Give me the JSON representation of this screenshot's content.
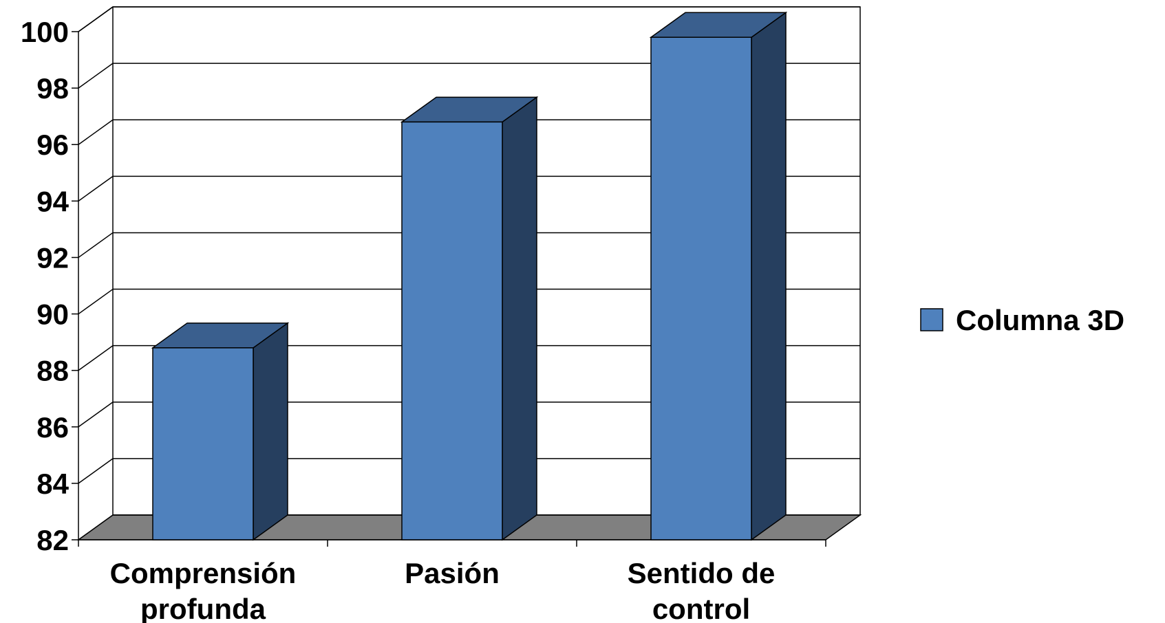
{
  "chart_data": {
    "type": "bar",
    "categories": [
      "Comprensión profunda",
      "Pasión",
      "Sentido de control"
    ],
    "category_lines": [
      [
        "Comprensión",
        "profunda"
      ],
      [
        "Pasión"
      ],
      [
        "Sentido de",
        "control"
      ]
    ],
    "series": [
      {
        "name": "Columna 3D",
        "values": [
          88.8,
          96.8,
          99.8
        ]
      }
    ],
    "ylim": [
      82,
      100
    ],
    "yticks": [
      82,
      84,
      86,
      88,
      90,
      92,
      94,
      96,
      98,
      100
    ],
    "grid": true,
    "three_d": true,
    "legend_position": "right",
    "colors": {
      "bar_front": "#4f81bd",
      "bar_top": "#3a5f8e",
      "bar_side": "#263f5f",
      "floor": "#808080"
    }
  }
}
